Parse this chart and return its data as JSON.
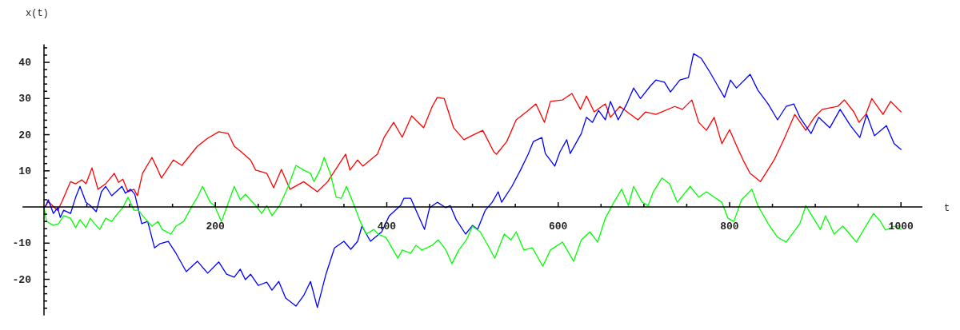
{
  "chart_data": {
    "type": "line",
    "xlabel": "t",
    "ylabel": "x(t)",
    "xlim": [
      -25,
      1025
    ],
    "ylim": [
      -30,
      45
    ],
    "xticks": [
      {
        "value": 50,
        "label": null
      },
      {
        "value": 100,
        "label": null
      },
      {
        "value": 150,
        "label": null
      },
      200,
      {
        "value": 250,
        "label": null
      },
      {
        "value": 300,
        "label": null
      },
      {
        "value": 350,
        "label": null
      },
      400,
      {
        "value": 450,
        "label": null
      },
      {
        "value": 500,
        "label": null
      },
      {
        "value": 550,
        "label": null
      },
      600,
      {
        "value": 650,
        "label": null
      },
      {
        "value": 700,
        "label": null
      },
      {
        "value": 750,
        "label": null
      },
      800,
      {
        "value": 850,
        "label": null
      },
      {
        "value": 900,
        "label": null
      },
      {
        "value": 950,
        "label": null
      },
      1000
    ],
    "yticks": [
      {
        "value": -28,
        "label": null
      },
      {
        "value": -26,
        "label": null
      },
      {
        "value": -24,
        "label": null
      },
      {
        "value": -22,
        "label": null
      },
      -20,
      {
        "value": -18,
        "label": null
      },
      {
        "value": -16,
        "label": null
      },
      {
        "value": -14,
        "label": null
      },
      {
        "value": -12,
        "label": null
      },
      -10,
      {
        "value": -8,
        "label": null
      },
      {
        "value": -6,
        "label": null
      },
      {
        "value": -4,
        "label": null
      },
      {
        "value": -2,
        "label": null
      },
      {
        "value": 2,
        "label": null
      },
      {
        "value": 4,
        "label": null
      },
      {
        "value": 6,
        "label": null
      },
      {
        "value": 8,
        "label": null
      },
      10,
      {
        "value": 12,
        "label": null
      },
      {
        "value": 14,
        "label": null
      },
      {
        "value": 16,
        "label": null
      },
      {
        "value": 18,
        "label": null
      },
      20,
      {
        "value": 22,
        "label": null
      },
      {
        "value": 24,
        "label": null
      },
      {
        "value": 26,
        "label": null
      },
      {
        "value": 28,
        "label": null
      },
      30,
      {
        "value": 32,
        "label": null
      },
      {
        "value": 34,
        "label": null
      },
      {
        "value": 36,
        "label": null
      },
      {
        "value": 38,
        "label": null
      },
      40,
      {
        "value": 42,
        "label": null
      },
      {
        "value": 44,
        "label": null
      }
    ],
    "grid": false,
    "marker": "none",
    "line_style": "solid",
    "series": [
      {
        "color": "#ff0000",
        "x": [
          0,
          2,
          5,
          16,
          21,
          31,
          37,
          44,
          49,
          56,
          63,
          72,
          82,
          87,
          92,
          98,
          105,
          109,
          115,
          126,
          133,
          137,
          151,
          161,
          179,
          191,
          204,
          215,
          222,
          229,
          241,
          247,
          260,
          268,
          277,
          287,
          303,
          319,
          331,
          352,
          357,
          366,
          372,
          389,
          397,
          408,
          418,
          429,
          443,
          453,
          459,
          467,
          478,
          490,
          499,
          512,
          525,
          528,
          540,
          551,
          563,
          574,
          584,
          591,
          605,
          616,
          626,
          633,
          642,
          655,
          661,
          672,
          693,
          702,
          714,
          736,
          745,
          756,
          764,
          773,
          782,
          791,
          800,
          808,
          817,
          824,
          836,
          852,
          864,
          876,
          889,
          899,
          908,
          926,
          934,
          945,
          951,
          959,
          966,
          979,
          988,
          1000
        ],
        "values": [
          0,
          0.4,
          1.5,
          -1,
          1.5,
          7,
          6.4,
          7.5,
          6.4,
          10.8,
          4.9,
          6.4,
          9.3,
          6.8,
          7.7,
          4.2,
          4.9,
          3.1,
          9.3,
          13.7,
          10.2,
          8,
          13,
          11.5,
          16.8,
          19,
          20.8,
          20.3,
          16.8,
          15.5,
          13,
          10.2,
          9.3,
          5.3,
          10.4,
          4.9,
          7,
          4.2,
          7,
          14.6,
          10.2,
          13,
          11.3,
          14.6,
          19.3,
          23.4,
          19.3,
          25.2,
          21.9,
          27.8,
          30.3,
          30,
          21.9,
          18.6,
          19.7,
          21.2,
          15.2,
          14.6,
          18.1,
          24.1,
          26.3,
          28.5,
          23.4,
          29.2,
          29.6,
          31.4,
          27,
          30.7,
          26.3,
          28.5,
          24.8,
          27.8,
          24.1,
          26.3,
          25.6,
          27.8,
          27,
          29.6,
          23.4,
          21.2,
          24.8,
          17.5,
          21.4,
          17,
          12.4,
          9.3,
          7,
          13,
          19,
          25.6,
          21.2,
          24.8,
          27,
          27.8,
          29.6,
          26.3,
          23.4,
          25.6,
          30,
          25.6,
          29.2,
          26.3
        ]
      },
      {
        "color": "#0000ff",
        "x": [
          0,
          2,
          5,
          11,
          16,
          19,
          23,
          31,
          37,
          42,
          49,
          54,
          61,
          67,
          72,
          79,
          91,
          95,
          101,
          106,
          114,
          121,
          129,
          135,
          145,
          154,
          166,
          179,
          191,
          204,
          213,
          222,
          229,
          235,
          241,
          250,
          260,
          266,
          274,
          282,
          294,
          303,
          311,
          319,
          329,
          339,
          350,
          358,
          366,
          371,
          381,
          394,
          403,
          416,
          420,
          428,
          434,
          444,
          450,
          459,
          469,
          474,
          481,
          492,
          500,
          506,
          515,
          523,
          530,
          534,
          546,
          556,
          565,
          571,
          581,
          585,
          596,
          602,
          610,
          614,
          627,
          633,
          640,
          647,
          655,
          661,
          670,
          680,
          688,
          696,
          708,
          714,
          724,
          731,
          742,
          752,
          758,
          767,
          777,
          786,
          794,
          801,
          808,
          824,
          833,
          845,
          856,
          866,
          875,
          882,
          895,
          904,
          917,
          929,
          941,
          952,
          960,
          969,
          983,
          992,
          1000
        ],
        "values": [
          0,
          0.2,
          2,
          -1.8,
          -0.2,
          -2.9,
          -0.9,
          -1.8,
          2.7,
          5.7,
          1.3,
          0.4,
          -1.3,
          4.2,
          5.7,
          3.1,
          5.7,
          3.8,
          4.9,
          3.5,
          -4.6,
          -4,
          -11.3,
          -10.2,
          -9.5,
          -12.8,
          -17.9,
          -15,
          -18.3,
          -15.2,
          -18.6,
          -19.4,
          -17.2,
          -20.1,
          -18.6,
          -21.7,
          -20.8,
          -23,
          -20.6,
          -25.2,
          -27.4,
          -24.5,
          -20.6,
          -27.8,
          -18.6,
          -11.3,
          -9.5,
          -11.7,
          -9.5,
          -5.3,
          -9.5,
          -6.9,
          -2.4,
          0.4,
          2.4,
          2.4,
          -0.9,
          -6.2,
          -0.2,
          1.3,
          -0.2,
          0.4,
          -3.5,
          -7.5,
          -5.1,
          -6.2,
          -0.9,
          1.3,
          4.2,
          1.3,
          5.7,
          10.2,
          14.6,
          18.1,
          19.2,
          14.8,
          11.3,
          15.2,
          18.6,
          14.8,
          20.3,
          24.8,
          23.4,
          26.7,
          24.1,
          29.2,
          24.1,
          28.5,
          32.9,
          30,
          33.6,
          35.1,
          34.5,
          31.8,
          35.1,
          35.8,
          42.4,
          41.1,
          37.3,
          33.6,
          30.3,
          35.1,
          32.9,
          36.7,
          32.3,
          28.5,
          24.1,
          27.8,
          28.5,
          24.8,
          20.3,
          24.8,
          21.9,
          27,
          22.5,
          19.2,
          25.6,
          19.7,
          22.5,
          17.5,
          15.9
        ]
      },
      {
        "color": "#00ff00",
        "x": [
          0,
          3,
          11,
          17,
          23,
          31,
          37,
          42,
          49,
          54,
          59,
          65,
          72,
          79,
          86,
          92,
          98,
          105,
          110,
          119,
          126,
          133,
          138,
          148,
          154,
          163,
          173,
          179,
          185,
          194,
          199,
          207,
          213,
          222,
          229,
          235,
          247,
          254,
          260,
          266,
          275,
          285,
          294,
          303,
          311,
          315,
          322,
          327,
          334,
          341,
          347,
          353,
          362,
          369,
          376,
          385,
          390,
          399,
          406,
          413,
          418,
          428,
          434,
          441,
          453,
          460,
          469,
          476,
          484,
          493,
          500,
          509,
          518,
          526,
          537,
          545,
          551,
          560,
          570,
          582,
          591,
          605,
          618,
          627,
          637,
          646,
          655,
          665,
          674,
          682,
          688,
          698,
          705,
          711,
          721,
          730,
          739,
          749,
          754,
          764,
          773,
          782,
          791,
          798,
          805,
          814,
          826,
          833,
          845,
          856,
          866,
          873,
          882,
          889,
          896,
          906,
          912,
          922,
          932,
          938,
          948,
          959,
          968,
          976,
          982,
          992,
          1000
        ],
        "values": [
          0,
          -4,
          -5.1,
          -4.6,
          -2.4,
          -3.1,
          -5.7,
          -3.5,
          -5.7,
          -3.1,
          -4.6,
          -6.2,
          -3.1,
          -4,
          -1.8,
          -0.2,
          2.7,
          -0.9,
          -0.9,
          -3.5,
          -5.3,
          -4,
          -6.2,
          -7.5,
          -5.3,
          -4,
          0.4,
          2.7,
          5.7,
          1.3,
          0.4,
          -4,
          -0.2,
          5.7,
          2,
          3.5,
          0.4,
          -1.8,
          0.4,
          -2.4,
          0.4,
          5.7,
          11.5,
          10.2,
          9.3,
          7,
          10.2,
          13.7,
          9.3,
          2.7,
          2.4,
          5.7,
          0.4,
          -4,
          -7.5,
          -6.2,
          -7.5,
          -8.4,
          -11.3,
          -14.2,
          -11.9,
          -12.8,
          -10.6,
          -11.9,
          -10.6,
          -9.1,
          -11.9,
          -15.7,
          -11.9,
          -9.1,
          -5.3,
          -6.9,
          -10.6,
          -14.2,
          -7.5,
          -9.1,
          -6.9,
          -11.9,
          -11.3,
          -16.4,
          -11.9,
          -9.7,
          -15,
          -9.1,
          -6.9,
          -9.7,
          -3.1,
          1.3,
          4.9,
          0.4,
          5.7,
          1.3,
          0.4,
          4.2,
          8,
          6.4,
          1.3,
          4.2,
          5.7,
          2.7,
          4.2,
          2.7,
          1.3,
          -3.1,
          -4,
          2,
          4.9,
          0.4,
          -4.6,
          -8.4,
          -9.7,
          -7.5,
          -4.6,
          0.4,
          -2.4,
          -6.2,
          -2.4,
          -7.5,
          -5.3,
          -6.9,
          -9.7,
          -5.3,
          -1.8,
          -4,
          -6.4,
          -5.3,
          -6.2
        ]
      }
    ]
  }
}
